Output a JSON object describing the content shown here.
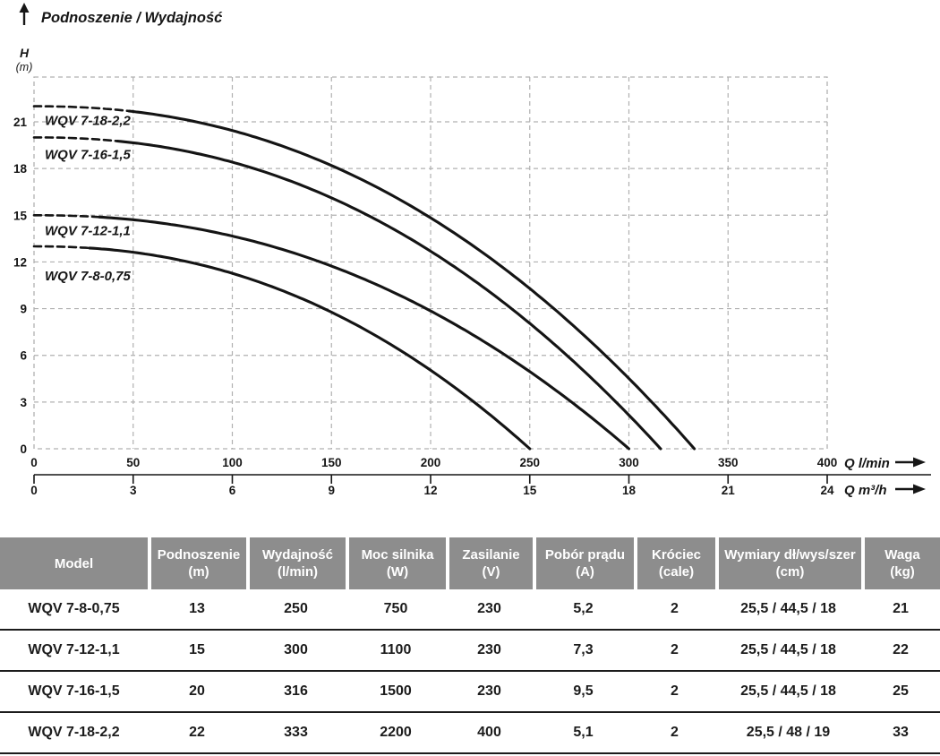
{
  "chart_data": {
    "type": "line",
    "title": "Podnoszenie / Wydajność",
    "ylabel": "H",
    "ylabel_unit": "(m)",
    "xlabel_primary": "Q l/min",
    "xlabel_secondary": "Q m³/h",
    "x_ticks_lmin": [
      0,
      50,
      100,
      150,
      200,
      250,
      300,
      350,
      400
    ],
    "x_ticks_m3h": [
      0,
      3,
      6,
      9,
      12,
      15,
      18,
      21,
      24
    ],
    "y_ticks_m": [
      0,
      3,
      6,
      9,
      12,
      15,
      18,
      21
    ],
    "xlim_lmin": [
      0,
      400
    ],
    "ylim_m": [
      0,
      24
    ],
    "grid": true,
    "legend_position": "labels-on-curves",
    "curve_model": "H(Q) = head_at_zero_m * (1 - (Q / max_flow_lmin)^2.2)",
    "series": [
      {
        "name": "WQV 7-18-2,2",
        "head_at_zero_m": 22,
        "max_flow_lmin": 333,
        "dashed_until_lmin": 48,
        "label_y_m": 21.1
      },
      {
        "name": "WQV 7-16-1,5",
        "head_at_zero_m": 20,
        "max_flow_lmin": 316,
        "dashed_until_lmin": 42,
        "label_y_m": 18.9
      },
      {
        "name": "WQV 7-12-1,1",
        "head_at_zero_m": 15,
        "max_flow_lmin": 300,
        "dashed_until_lmin": 33,
        "label_y_m": 14.0
      },
      {
        "name": "WQV 7-8-0,75",
        "head_at_zero_m": 13,
        "max_flow_lmin": 250,
        "dashed_until_lmin": 28,
        "label_y_m": 11.1
      }
    ]
  },
  "colors": {
    "curve": "#141414",
    "grid": "#b0b0b0",
    "axis": "#161616",
    "header_bg": "#8d8d8d",
    "header_text": "#ffffff",
    "row_text": "#1c1c1c",
    "row_divider": "#1c1c1c"
  },
  "table": {
    "headers": [
      {
        "label": "Model",
        "unit": ""
      },
      {
        "label": "Podnoszenie",
        "unit": "(m)"
      },
      {
        "label": "Wydajność",
        "unit": "(l/min)"
      },
      {
        "label": "Moc silnika",
        "unit": "(W)"
      },
      {
        "label": "Zasilanie",
        "unit": "(V)"
      },
      {
        "label": "Pobór prądu",
        "unit": "(A)"
      },
      {
        "label": "Króciec",
        "unit": "(cale)"
      },
      {
        "label": "Wymiary dł/wys/szer",
        "unit": "(cm)"
      },
      {
        "label": "Waga",
        "unit": "(kg)"
      }
    ],
    "rows": [
      [
        "WQV 7-8-0,75",
        "13",
        "250",
        "750",
        "230",
        "5,2",
        "2",
        "25,5 / 44,5 / 18",
        "21"
      ],
      [
        "WQV 7-12-1,1",
        "15",
        "300",
        "1100",
        "230",
        "7,3",
        "2",
        "25,5 / 44,5 / 18",
        "22"
      ],
      [
        "WQV 7-16-1,5",
        "20",
        "316",
        "1500",
        "230",
        "9,5",
        "2",
        "25,5 / 44,5 / 18",
        "25"
      ],
      [
        "WQV 7-18-2,2",
        "22",
        "333",
        "2200",
        "400",
        "5,1",
        "2",
        "25,5 / 48 / 19",
        "33"
      ]
    ]
  }
}
